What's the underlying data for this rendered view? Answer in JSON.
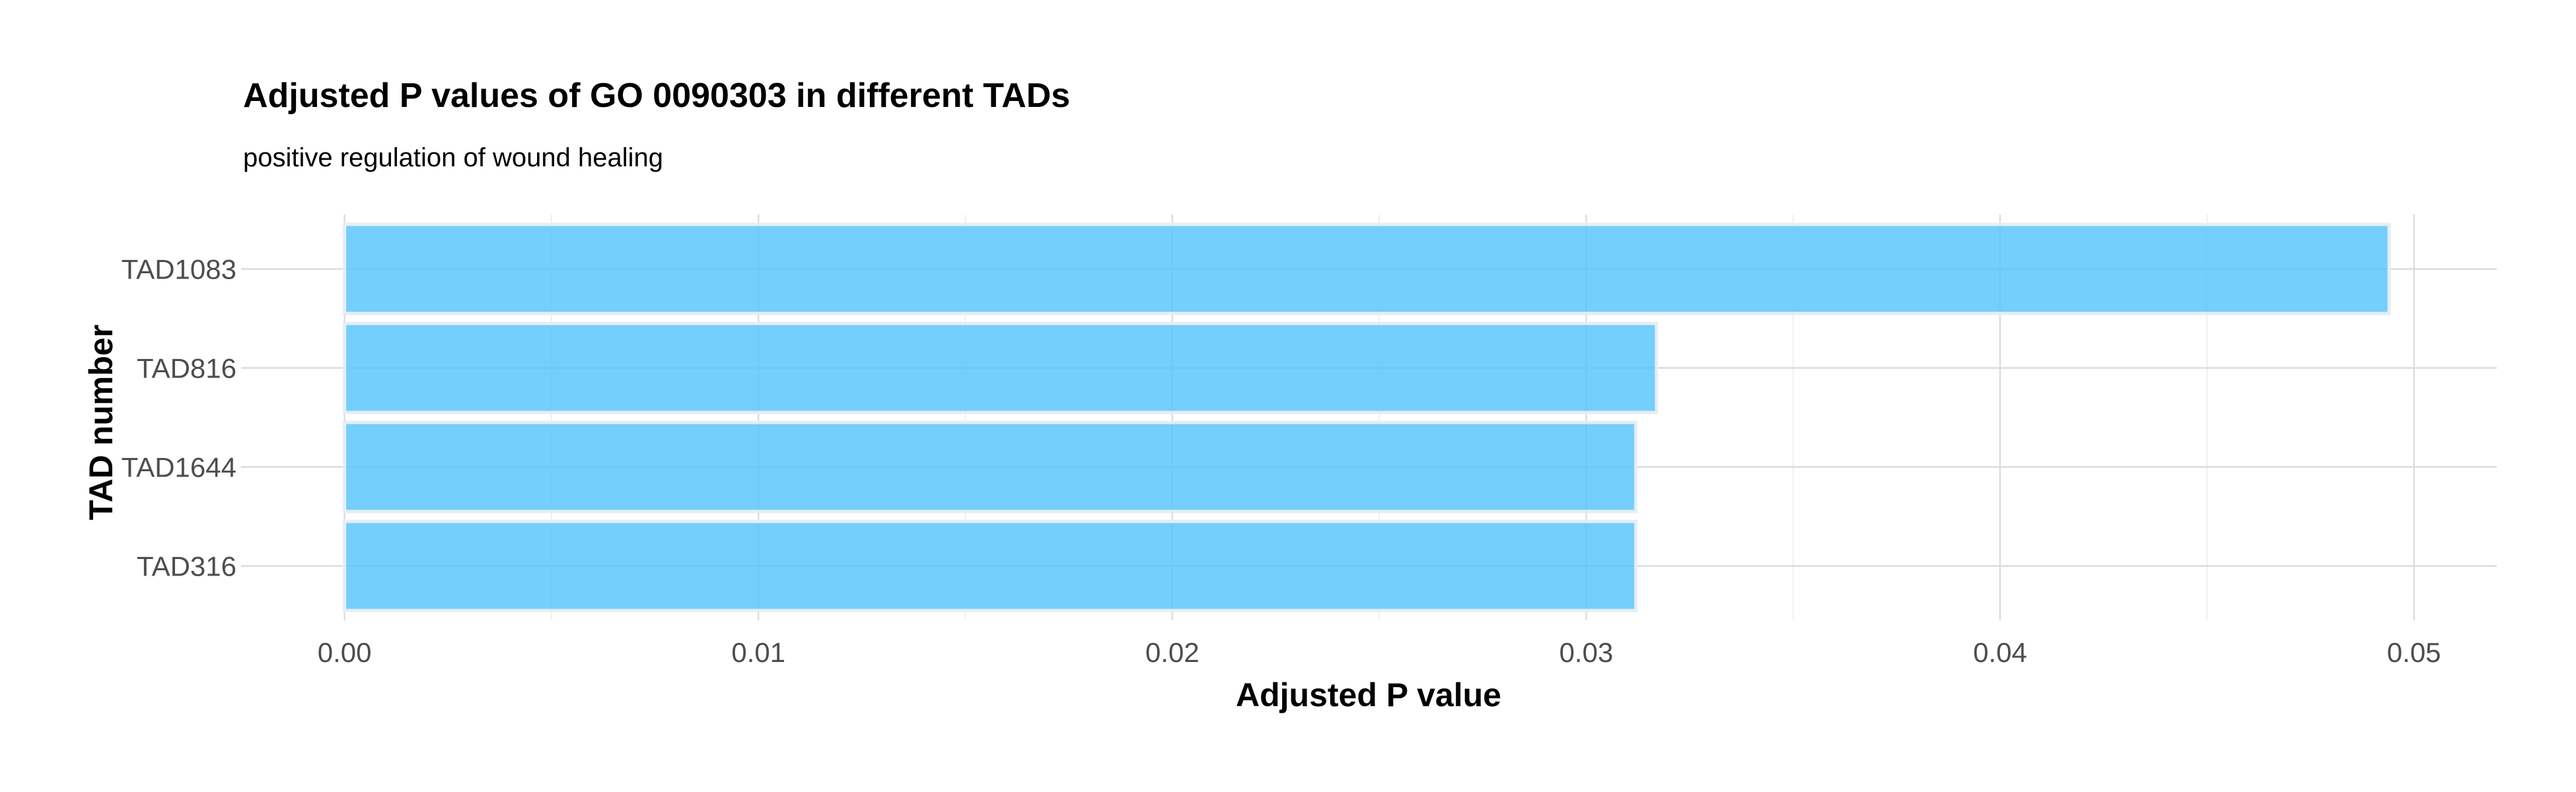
{
  "chart_data": {
    "type": "bar",
    "orientation": "horizontal",
    "title": "Adjusted P values of GO 0090303 in different TADs",
    "subtitle": "positive regulation of wound healing",
    "xlabel": "Adjusted P value",
    "ylabel": "TAD number",
    "categories": [
      "TAD1083",
      "TAD816",
      "TAD1644",
      "TAD316"
    ],
    "values": [
      0.0494,
      0.0317,
      0.0312,
      0.0312
    ],
    "xlim": [
      -0.0025,
      0.052
    ],
    "xticks": [
      0.0,
      0.01,
      0.02,
      0.03,
      0.04,
      0.05
    ],
    "xtick_labels": [
      "0.00",
      "0.01",
      "0.02",
      "0.03",
      "0.04",
      "0.05"
    ],
    "grid": true,
    "legend": "none",
    "colors": {
      "bar_fill": "#56c4fb",
      "bar_outline": "#e6eef4",
      "grid_major": "#dcdcdc",
      "grid_minor": "#ececec",
      "tick_text": "#4d4d4d"
    }
  }
}
